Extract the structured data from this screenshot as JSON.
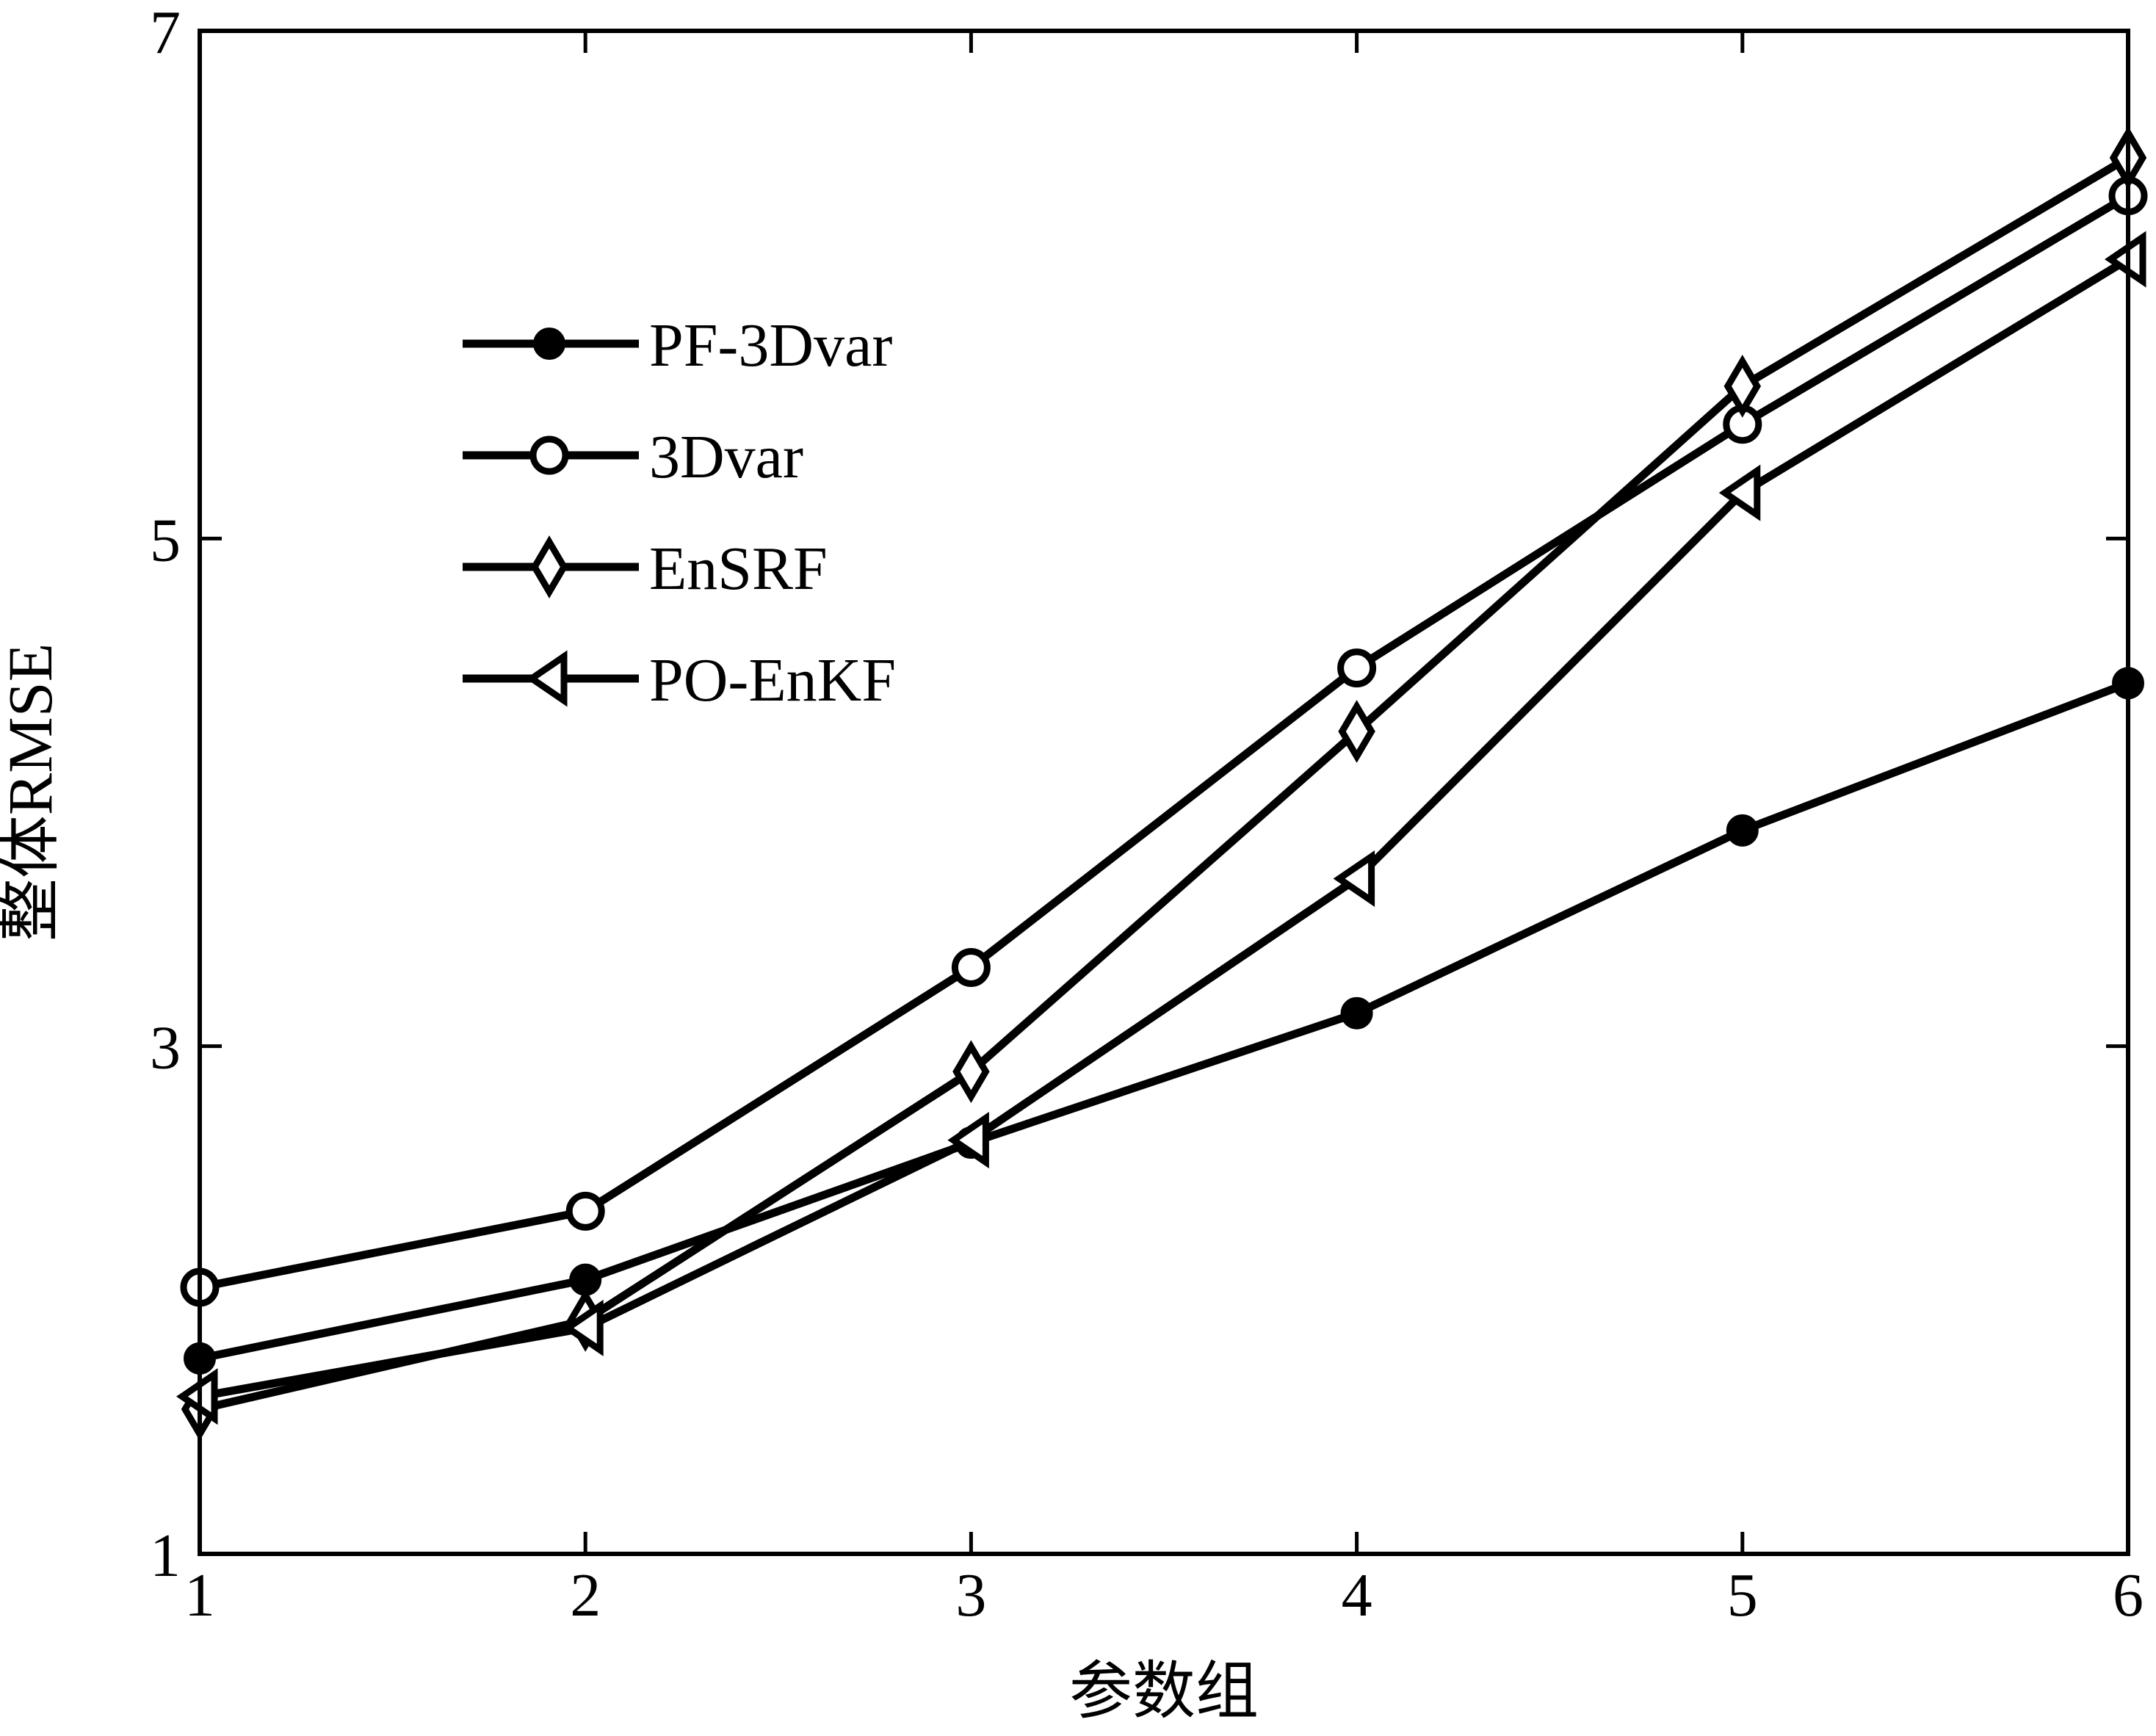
{
  "chart_data": {
    "type": "line",
    "title": "",
    "xlabel": "参数组",
    "ylabel": "整体RMSE",
    "x": [
      1,
      2,
      3,
      4,
      5,
      6
    ],
    "xlim": [
      1,
      6
    ],
    "ylim": [
      1,
      7
    ],
    "xticks": [
      "1",
      "2",
      "3",
      "4",
      "5",
      "6"
    ],
    "yticks": [
      "1",
      "3",
      "5",
      "7"
    ],
    "grid": false,
    "legend_position": "top-left",
    "line_color": "#000000",
    "series": [
      {
        "name": "PF-3Dvar",
        "marker": "filled-circle",
        "values": [
          1.77,
          2.08,
          2.62,
          3.13,
          3.85,
          4.43
        ]
      },
      {
        "name": "3Dvar",
        "marker": "open-circle",
        "values": [
          2.05,
          2.35,
          3.31,
          4.49,
          5.45,
          6.35
        ]
      },
      {
        "name": "EnSRF",
        "marker": "open-diamond",
        "values": [
          1.57,
          1.92,
          2.9,
          4.24,
          5.6,
          6.5
        ]
      },
      {
        "name": "PO-EnKF",
        "marker": "left-triangle",
        "values": [
          1.62,
          1.89,
          2.63,
          3.66,
          5.18,
          6.1
        ]
      }
    ]
  }
}
